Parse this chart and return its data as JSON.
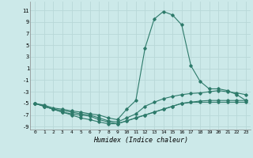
{
  "xlabel": "Humidex (Indice chaleur)",
  "bg_color": "#cce9e9",
  "grid_color": "#b8d8d8",
  "line_color": "#2d7a6a",
  "xlim": [
    -0.5,
    23.5
  ],
  "ylim": [
    -9.5,
    12.5
  ],
  "xticks": [
    0,
    1,
    2,
    3,
    4,
    5,
    6,
    7,
    8,
    9,
    10,
    11,
    12,
    13,
    14,
    15,
    16,
    17,
    18,
    19,
    20,
    21,
    22,
    23
  ],
  "yticks": [
    -9,
    -7,
    -5,
    -3,
    -1,
    1,
    3,
    5,
    7,
    9,
    11
  ],
  "series_y": [
    [
      -5.0,
      -5.3,
      -5.8,
      -6.0,
      -6.3,
      -6.5,
      -6.8,
      -7.0,
      -7.5,
      -7.8,
      -6.0,
      -4.5,
      4.5,
      9.5,
      10.8,
      10.2,
      8.5,
      1.5,
      -1.2,
      -2.5,
      -2.5,
      -2.8,
      -3.5,
      -4.5
    ],
    [
      -5.0,
      -5.5,
      -6.0,
      -6.2,
      -6.5,
      -6.8,
      -7.0,
      -7.5,
      -8.0,
      -8.2,
      -7.5,
      -6.8,
      -5.5,
      -4.8,
      -4.2,
      -3.8,
      -3.5,
      -3.3,
      -3.2,
      -3.0,
      -2.8,
      -3.0,
      -3.2,
      -3.5
    ],
    [
      -5.0,
      -5.5,
      -6.0,
      -6.5,
      -6.8,
      -7.0,
      -7.2,
      -7.8,
      -8.2,
      -8.5,
      -8.0,
      -7.5,
      -7.0,
      -6.5,
      -6.0,
      -5.5,
      -5.0,
      -4.8,
      -4.8,
      -4.8,
      -4.8,
      -4.8,
      -4.8,
      -4.8
    ],
    [
      -5.0,
      -5.5,
      -6.0,
      -6.5,
      -7.0,
      -7.5,
      -7.8,
      -8.2,
      -8.5,
      -8.5,
      -8.0,
      -7.5,
      -7.0,
      -6.5,
      -6.0,
      -5.5,
      -5.0,
      -4.8,
      -4.6,
      -4.5,
      -4.5,
      -4.5,
      -4.5,
      -4.5
    ]
  ]
}
